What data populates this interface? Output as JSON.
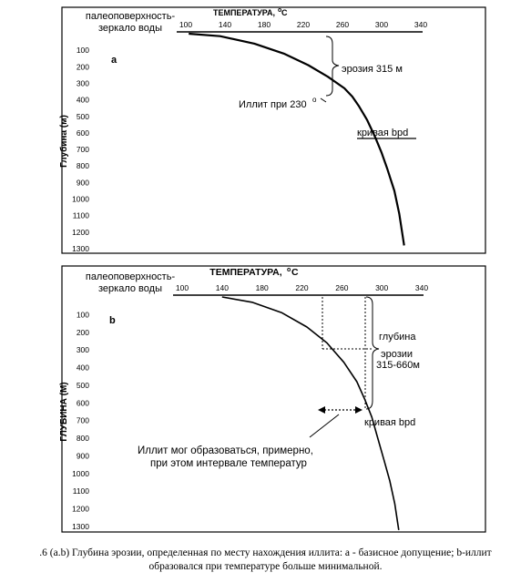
{
  "chart_data": [
    {
      "type": "line",
      "panel_label": "a",
      "top_label": "палеоповерхность-\nзеркало воды",
      "xlabel": "ТЕМПЕРАТУРА,",
      "xlabel_unit": "С",
      "ylabel": "Глубина (м)",
      "xlim": [
        100,
        340
      ],
      "ylim": [
        0,
        1300
      ],
      "x_ticks": [
        100,
        140,
        180,
        220,
        260,
        300,
        340
      ],
      "y_ticks": [
        100,
        200,
        300,
        400,
        500,
        600,
        700,
        800,
        900,
        1000,
        1100,
        1200,
        1300
      ],
      "series": [
        {
          "x": [
            103,
            135,
            170,
            200,
            225,
            245,
            262,
            270,
            277,
            285,
            293,
            300,
            306,
            313,
            318,
            323
          ],
          "y": [
            0,
            15,
            60,
            120,
            190,
            260,
            330,
            380,
            440,
            520,
            620,
            720,
            820,
            950,
            1090,
            1280
          ]
        }
      ],
      "annotations": {
        "erosion": "эрозия 315 м",
        "illite": "Иллит при 230",
        "curve": "кривая bpd"
      }
    },
    {
      "type": "line",
      "panel_label": "b",
      "top_label": "палеоповерхность-\nзеркало воды",
      "xlabel": "ТЕМПЕРАТУРА,",
      "xlabel_unit": "С",
      "ylabel": "ГЛУБИНА (М)",
      "xlim": [
        100,
        340
      ],
      "ylim": [
        0,
        1300
      ],
      "x_ticks": [
        100,
        140,
        180,
        220,
        260,
        300,
        340
      ],
      "y_ticks": [
        100,
        200,
        300,
        400,
        500,
        600,
        700,
        800,
        900,
        1000,
        1100,
        1200,
        1300
      ],
      "series": [
        {
          "x": [
            140,
            170,
            200,
            225,
            245,
            262,
            275,
            283,
            290,
            296,
            302,
            308,
            313,
            317
          ],
          "y": [
            0,
            30,
            90,
            170,
            260,
            370,
            480,
            580,
            680,
            800,
            920,
            1040,
            1170,
            1320
          ]
        }
      ],
      "annotations": {
        "depth": "глубина",
        "erosion": "эрозии",
        "range": "315-660м",
        "curve": "кривая bpd",
        "illite_line1": "Иллит мог образоваться, примерно,",
        "illite_line2": "при этом интервале температур"
      }
    }
  ],
  "caption": {
    "line1": ".6 (a.b) Глубина эрозии, определенная по месту нахождения иллита: а - базисное допущение; b-иллит",
    "line2": "образовался при температуре больше минимальной."
  }
}
